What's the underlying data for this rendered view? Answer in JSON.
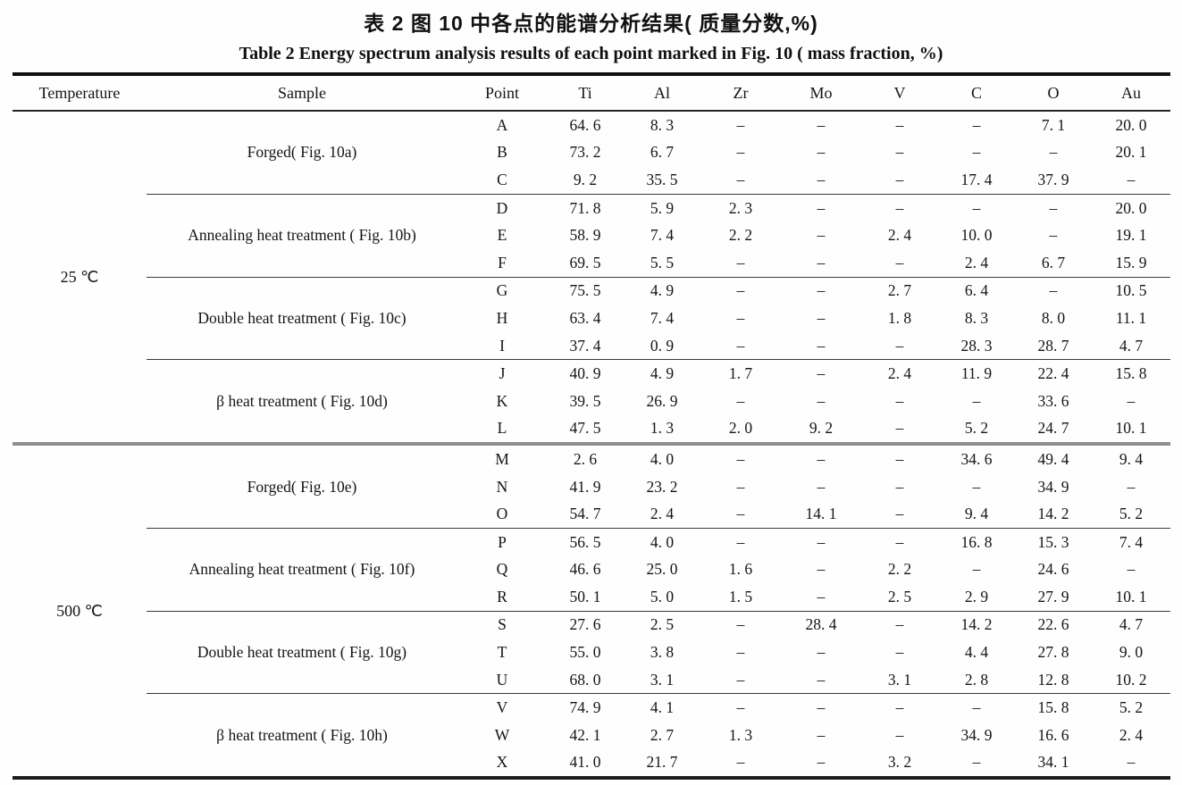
{
  "titles": {
    "chinese": "表 2  图 10 中各点的能谱分析结果( 质量分数,%)",
    "english": "Table 2  Energy spectrum analysis results of each point marked in Fig. 10 ( mass fraction, %)"
  },
  "table": {
    "columns": [
      "Temperature",
      "Sample",
      "Point",
      "Ti",
      "Al",
      "Zr",
      "Mo",
      "V",
      "C",
      "O",
      "Au"
    ],
    "element_columns": [
      "Ti",
      "Al",
      "Zr",
      "Mo",
      "V",
      "C",
      "O",
      "Au"
    ],
    "no_value_symbol": "–",
    "temperature_groups": [
      {
        "temperature": "25 ℃",
        "sample_groups": [
          {
            "sample": "Forged( Fig. 10a)",
            "rows": [
              {
                "point": "A",
                "values": [
                  "64. 6",
                  "8. 3",
                  "–",
                  "–",
                  "–",
                  "–",
                  "7. 1",
                  "20. 0"
                ]
              },
              {
                "point": "B",
                "values": [
                  "73. 2",
                  "6. 7",
                  "–",
                  "–",
                  "–",
                  "–",
                  "–",
                  "20. 1"
                ]
              },
              {
                "point": "C",
                "values": [
                  "9. 2",
                  "35. 5",
                  "–",
                  "–",
                  "–",
                  "17. 4",
                  "37. 9",
                  "–"
                ]
              }
            ]
          },
          {
            "sample": "Annealing heat treatment ( Fig. 10b)",
            "rows": [
              {
                "point": "D",
                "values": [
                  "71. 8",
                  "5. 9",
                  "2. 3",
                  "–",
                  "–",
                  "–",
                  "–",
                  "20. 0"
                ]
              },
              {
                "point": "E",
                "values": [
                  "58. 9",
                  "7. 4",
                  "2. 2",
                  "–",
                  "2. 4",
                  "10. 0",
                  "–",
                  "19. 1"
                ]
              },
              {
                "point": "F",
                "values": [
                  "69. 5",
                  "5. 5",
                  "–",
                  "–",
                  "–",
                  "2. 4",
                  "6. 7",
                  "15. 9"
                ]
              }
            ]
          },
          {
            "sample": "Double heat treatment ( Fig. 10c)",
            "rows": [
              {
                "point": "G",
                "values": [
                  "75. 5",
                  "4. 9",
                  "–",
                  "–",
                  "2. 7",
                  "6. 4",
                  "–",
                  "10. 5"
                ]
              },
              {
                "point": "H",
                "values": [
                  "63. 4",
                  "7. 4",
                  "–",
                  "–",
                  "1. 8",
                  "8. 3",
                  "8. 0",
                  "11. 1"
                ]
              },
              {
                "point": "I",
                "values": [
                  "37. 4",
                  "0. 9",
                  "–",
                  "–",
                  "–",
                  "28. 3",
                  "28. 7",
                  "4. 7"
                ]
              }
            ]
          },
          {
            "sample": "β heat treatment ( Fig. 10d)",
            "rows": [
              {
                "point": "J",
                "values": [
                  "40. 9",
                  "4. 9",
                  "1. 7",
                  "–",
                  "2. 4",
                  "11. 9",
                  "22. 4",
                  "15. 8"
                ]
              },
              {
                "point": "K",
                "values": [
                  "39. 5",
                  "26. 9",
                  "–",
                  "–",
                  "–",
                  "–",
                  "33. 6",
                  "–"
                ]
              },
              {
                "point": "L",
                "values": [
                  "47. 5",
                  "1. 3",
                  "2. 0",
                  "9. 2",
                  "–",
                  "5. 2",
                  "24. 7",
                  "10. 1"
                ]
              }
            ]
          }
        ]
      },
      {
        "temperature": "500 ℃",
        "sample_groups": [
          {
            "sample": "Forged( Fig. 10e)",
            "rows": [
              {
                "point": "M",
                "values": [
                  "2. 6",
                  "4. 0",
                  "–",
                  "–",
                  "–",
                  "34. 6",
                  "49. 4",
                  "9. 4"
                ]
              },
              {
                "point": "N",
                "values": [
                  "41. 9",
                  "23. 2",
                  "–",
                  "–",
                  "–",
                  "–",
                  "34. 9",
                  "–"
                ]
              },
              {
                "point": "O",
                "values": [
                  "54. 7",
                  "2. 4",
                  "–",
                  "14. 1",
                  "–",
                  "9. 4",
                  "14. 2",
                  "5. 2"
                ]
              }
            ]
          },
          {
            "sample": "Annealing heat treatment ( Fig. 10f)",
            "rows": [
              {
                "point": "P",
                "values": [
                  "56. 5",
                  "4. 0",
                  "–",
                  "–",
                  "–",
                  "16. 8",
                  "15. 3",
                  "7. 4"
                ]
              },
              {
                "point": "Q",
                "values": [
                  "46. 6",
                  "25. 0",
                  "1. 6",
                  "–",
                  "2. 2",
                  "–",
                  "24. 6",
                  "–"
                ]
              },
              {
                "point": "R",
                "values": [
                  "50. 1",
                  "5. 0",
                  "1. 5",
                  "–",
                  "2. 5",
                  "2. 9",
                  "27. 9",
                  "10. 1"
                ]
              }
            ]
          },
          {
            "sample": "Double heat treatment ( Fig. 10g)",
            "rows": [
              {
                "point": "S",
                "values": [
                  "27. 6",
                  "2. 5",
                  "–",
                  "28. 4",
                  "–",
                  "14. 2",
                  "22. 6",
                  "4. 7"
                ]
              },
              {
                "point": "T",
                "values": [
                  "55. 0",
                  "3. 8",
                  "–",
                  "–",
                  "–",
                  "4. 4",
                  "27. 8",
                  "9. 0"
                ]
              },
              {
                "point": "U",
                "values": [
                  "68. 0",
                  "3. 1",
                  "–",
                  "–",
                  "3. 1",
                  "2. 8",
                  "12. 8",
                  "10. 2"
                ]
              }
            ]
          },
          {
            "sample": "β heat treatment ( Fig. 10h)",
            "rows": [
              {
                "point": "V",
                "values": [
                  "74. 9",
                  "4. 1",
                  "–",
                  "–",
                  "–",
                  "–",
                  "15. 8",
                  "5. 2"
                ]
              },
              {
                "point": "W",
                "values": [
                  "42. 1",
                  "2. 7",
                  "1. 3",
                  "–",
                  "–",
                  "34. 9",
                  "16. 6",
                  "2. 4"
                ]
              },
              {
                "point": "X",
                "values": [
                  "41. 0",
                  "21. 7",
                  "–",
                  "–",
                  "3. 2",
                  "–",
                  "34. 1",
                  "–"
                ]
              }
            ]
          }
        ]
      }
    ]
  }
}
